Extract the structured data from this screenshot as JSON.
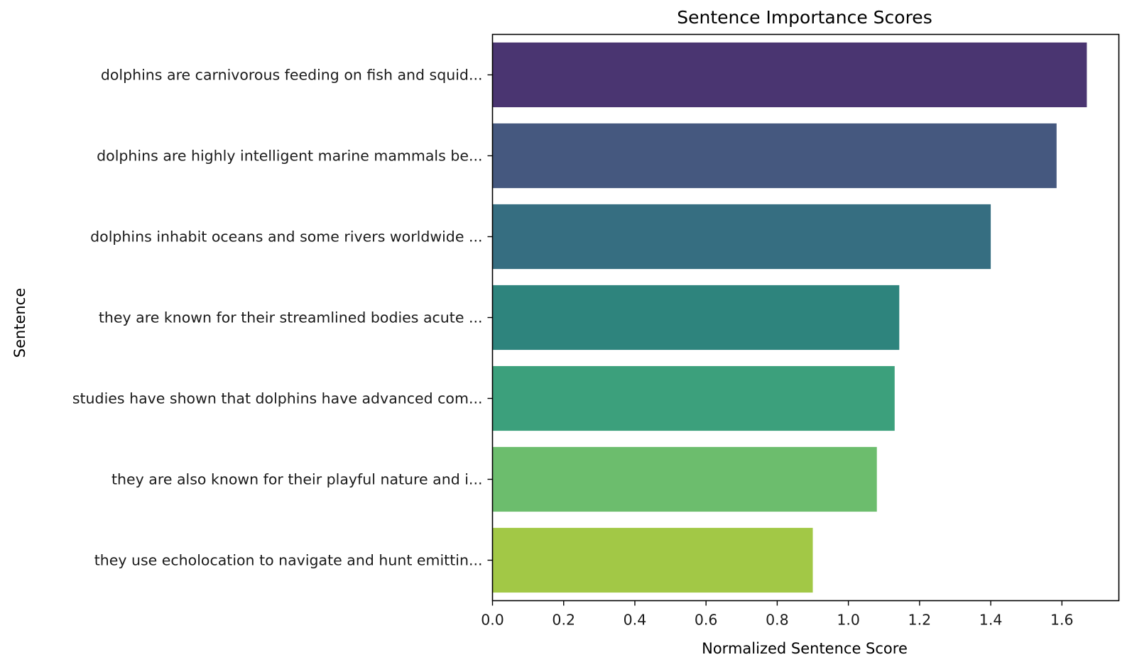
{
  "chart_data": {
    "type": "bar",
    "orientation": "horizontal",
    "title": "Sentence Importance Scores",
    "xlabel": "Normalized Sentence Score",
    "ylabel": "Sentence",
    "xlim": [
      0,
      1.76
    ],
    "xticks": [
      "0.0",
      "0.2",
      "0.4",
      "0.6",
      "0.8",
      "1.0",
      "1.2",
      "1.4",
      "1.6"
    ],
    "grid": false,
    "categories": [
      "dolphins are carnivorous feeding on fish and squid...",
      "dolphins are highly intelligent marine mammals be...",
      "dolphins inhabit oceans and some rivers worldwide ...",
      "they are known for their streamlined bodies acute ...",
      "studies have shown that dolphins have advanced com...",
      "they are also known for their playful nature and i...",
      "they use echolocation to navigate and hunt emittin..."
    ],
    "values": [
      1.67,
      1.585,
      1.4,
      1.143,
      1.13,
      1.08,
      0.9
    ],
    "colors": [
      "#4a3571",
      "#45587f",
      "#366e81",
      "#2e847d",
      "#3ca07c",
      "#6cbd6d",
      "#a2c846"
    ]
  }
}
